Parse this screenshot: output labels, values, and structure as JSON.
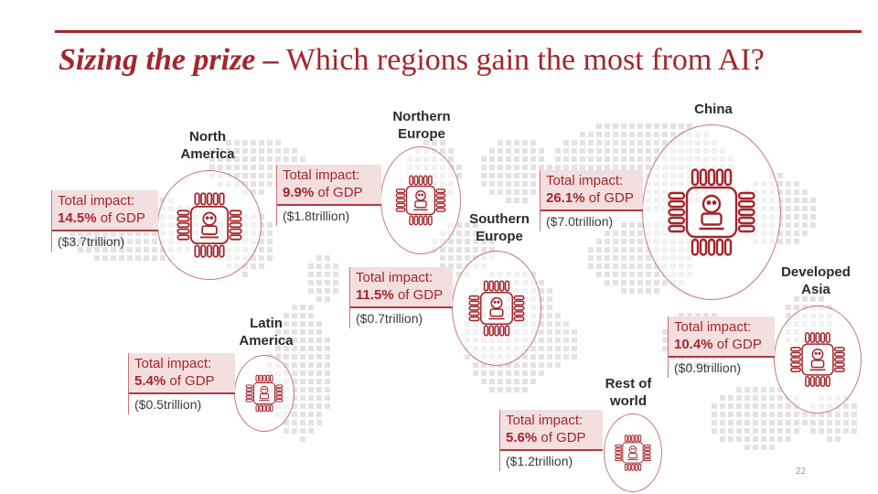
{
  "title": {
    "emphasis": "Sizing the prize –",
    "rest": " Which regions gain the most from AI?"
  },
  "regions": [
    {
      "name": "North\nAmerica",
      "impact_label": "Total impact:",
      "impact_value": "14.5%",
      "impact_suffix": " of GDP",
      "amount": "($3.7trillion)"
    },
    {
      "name": "Northern\nEurope",
      "impact_label": "Total impact:",
      "impact_value": "9.9%",
      "impact_suffix": " of GDP",
      "amount": "($1.8trillion)"
    },
    {
      "name": "Southern\nEurope",
      "impact_label": "Total impact:",
      "impact_value": "11.5%",
      "impact_suffix": " of GDP",
      "amount": "($0.7trillion)"
    },
    {
      "name": "China",
      "impact_label": "Total impact:",
      "impact_value": "26.1%",
      "impact_suffix": " of GDP",
      "amount": "($7.0trillion)"
    },
    {
      "name": "Developed\nAsia",
      "impact_label": "Total impact:",
      "impact_value": "10.4%",
      "impact_suffix": " of GDP",
      "amount": "($0.9trillion)"
    },
    {
      "name": "Latin\nAmerica",
      "impact_label": "Total impact:",
      "impact_value": "5.4%",
      "impact_suffix": " of GDP",
      "amount": "($0.5trillion)"
    },
    {
      "name": "Rest of\nworld",
      "impact_label": "Total impact:",
      "impact_value": "5.6%",
      "impact_suffix": " of GDP",
      "amount": "($1.2trillion)"
    }
  ],
  "page_number": "22",
  "icons": {
    "chip": "ai-chip-robot-icon"
  },
  "colors": {
    "accent": "#a3262c",
    "callout_bg": "#f3dfdf",
    "map_dots": "#e3e3e3"
  }
}
